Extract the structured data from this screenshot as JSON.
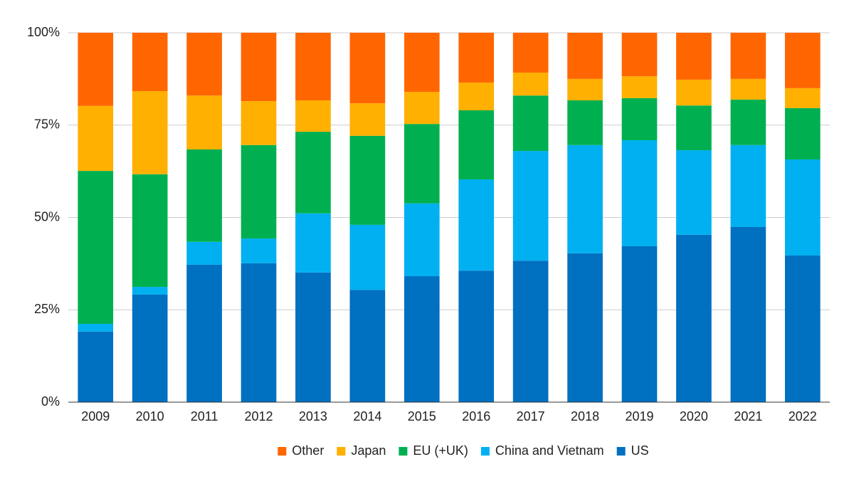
{
  "chart_data": {
    "type": "stacked_bar",
    "categories": [
      "2009",
      "2010",
      "2011",
      "2012",
      "2013",
      "2014",
      "2015",
      "2016",
      "2017",
      "2018",
      "2019",
      "2020",
      "2021",
      "2022"
    ],
    "series": [
      {
        "name": "US",
        "color": "#0070c0",
        "values": [
          19.1,
          29.1,
          37.2,
          37.6,
          35.1,
          30.4,
          34.1,
          35.6,
          38.3,
          40.3,
          42.2,
          45.3,
          47.4,
          39.7
        ]
      },
      {
        "name": "China and Vietnam",
        "color": "#00b0f0",
        "values": [
          2.1,
          2.1,
          6.2,
          6.7,
          16.0,
          17.6,
          19.7,
          24.7,
          29.7,
          29.3,
          28.7,
          22.9,
          22.2,
          26.0
        ]
      },
      {
        "name": "EU (+UK)",
        "color": "#00b050",
        "values": [
          41.4,
          30.5,
          25.0,
          25.3,
          22.1,
          24.1,
          21.5,
          18.7,
          15.0,
          12.1,
          11.4,
          12.1,
          12.3,
          13.9
        ]
      },
      {
        "name": "Japan",
        "color": "#ffb000",
        "values": [
          17.6,
          22.5,
          14.6,
          11.9,
          8.5,
          8.8,
          8.7,
          7.5,
          6.2,
          5.8,
          5.9,
          7.0,
          5.6,
          5.4
        ]
      },
      {
        "name": "Other",
        "color": "#ff6600",
        "values": [
          19.8,
          15.8,
          17.0,
          18.5,
          18.3,
          19.1,
          16.0,
          13.5,
          10.8,
          12.5,
          11.8,
          12.7,
          12.5,
          15.0
        ]
      }
    ],
    "ylim": [
      0,
      100
    ],
    "yticks": [
      {
        "value": 0,
        "label": "0%"
      },
      {
        "value": 25,
        "label": "25%"
      },
      {
        "value": 50,
        "label": "50%"
      },
      {
        "value": 75,
        "label": "75%"
      },
      {
        "value": 100,
        "label": "100%"
      }
    ],
    "grid": true,
    "legend": "bottom"
  }
}
